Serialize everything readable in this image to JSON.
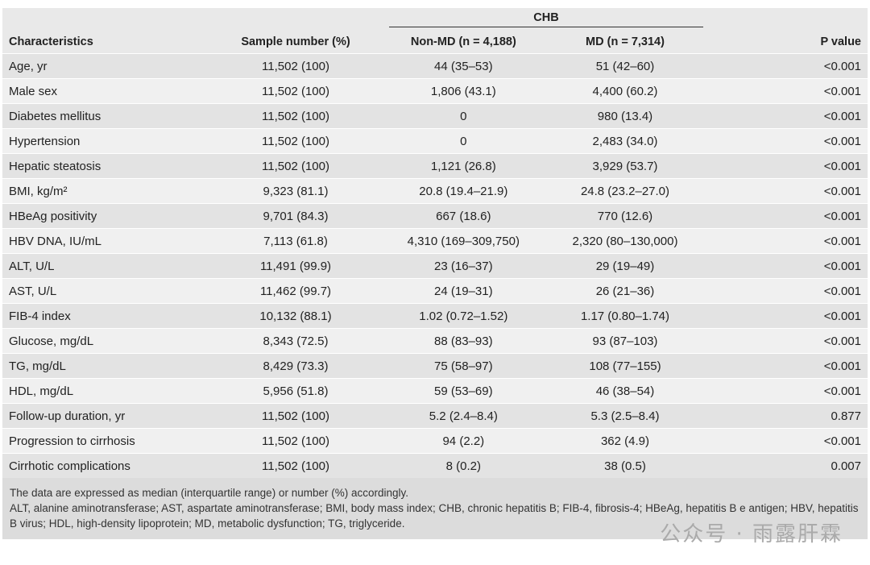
{
  "table": {
    "group_header": "CHB",
    "headers": [
      "Characteristics",
      "Sample number (%)",
      "Non-MD (n = 4,188)",
      "MD (n = 7,314)",
      "P value"
    ],
    "rows": [
      [
        "Age, yr",
        "11,502 (100)",
        "44 (35–53)",
        "51 (42–60)",
        "<0.001"
      ],
      [
        "Male sex",
        "11,502 (100)",
        "1,806 (43.1)",
        "4,400 (60.2)",
        "<0.001"
      ],
      [
        "Diabetes mellitus",
        "11,502 (100)",
        "0",
        "980 (13.4)",
        "<0.001"
      ],
      [
        "Hypertension",
        "11,502 (100)",
        "0",
        "2,483 (34.0)",
        "<0.001"
      ],
      [
        "Hepatic steatosis",
        "11,502 (100)",
        "1,121 (26.8)",
        "3,929 (53.7)",
        "<0.001"
      ],
      [
        "BMI, kg/m²",
        "9,323 (81.1)",
        "20.8 (19.4–21.9)",
        "24.8 (23.2–27.0)",
        "<0.001"
      ],
      [
        "HBeAg positivity",
        "9,701 (84.3)",
        "667 (18.6)",
        "770 (12.6)",
        "<0.001"
      ],
      [
        "HBV DNA, IU/mL",
        "7,113 (61.8)",
        "4,310 (169–309,750)",
        "2,320 (80–130,000)",
        "<0.001"
      ],
      [
        "ALT, U/L",
        "11,491 (99.9)",
        "23 (16–37)",
        "29 (19–49)",
        "<0.001"
      ],
      [
        "AST, U/L",
        "11,462 (99.7)",
        "24 (19–31)",
        "26 (21–36)",
        "<0.001"
      ],
      [
        "FIB-4 index",
        "10,132 (88.1)",
        "1.02 (0.72–1.52)",
        "1.17 (0.80–1.74)",
        "<0.001"
      ],
      [
        "Glucose, mg/dL",
        "8,343 (72.5)",
        "88 (83–93)",
        "93 (87–103)",
        "<0.001"
      ],
      [
        "TG, mg/dL",
        "8,429 (73.3)",
        "75 (58–97)",
        "108 (77–155)",
        "<0.001"
      ],
      [
        "HDL, mg/dL",
        "5,956 (51.8)",
        "59 (53–69)",
        "46 (38–54)",
        "<0.001"
      ],
      [
        "Follow-up duration, yr",
        "11,502 (100)",
        "5.2 (2.4–8.4)",
        "5.3 (2.5–8.4)",
        "0.877"
      ],
      [
        "Progression to cirrhosis",
        "11,502 (100)",
        "94 (2.2)",
        "362 (4.9)",
        "<0.001"
      ],
      [
        "Cirrhotic complications",
        "11,502 (100)",
        "8 (0.2)",
        "38 (0.5)",
        "0.007"
      ]
    ],
    "footnotes": [
      "The data are expressed as median (interquartile range) or number (%) accordingly.",
      "ALT, alanine aminotransferase; AST, aspartate aminotransferase; BMI, body mass index; CHB, chronic hepatitis B; FIB-4, fibrosis-4; HBeAg, hepatitis B e antigen; HBV, hepatitis B virus; HDL, high-density lipoprotein; MD, metabolic dysfunction; TG, triglyceride."
    ]
  },
  "watermark": "公众号 · 雨露肝霖"
}
